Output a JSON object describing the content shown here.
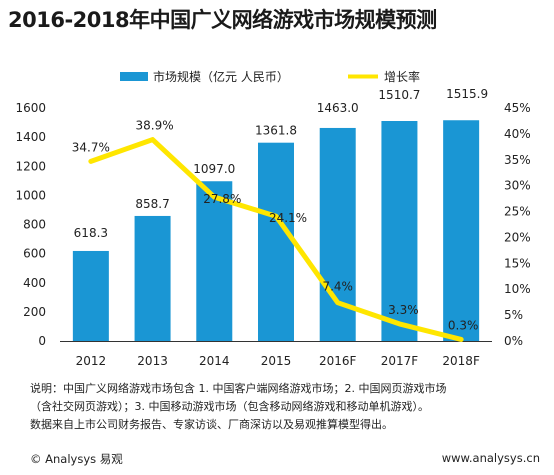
{
  "title": "2016-2018年中国广义网络游戏市场规模预测",
  "colors": {
    "bar": "#1A96D4",
    "line": "#FFE600",
    "axis": "#333333"
  },
  "chart_data": {
    "type": "bar",
    "categories": [
      "2012",
      "2013",
      "2014",
      "2015",
      "2016F",
      "2017F",
      "2018F"
    ],
    "series": [
      {
        "name": "市场规模（亿元 人民币）",
        "type": "bar",
        "axis": "left",
        "values": [
          618.3,
          858.7,
          1097.0,
          1361.8,
          1463.0,
          1510.7,
          1515.9
        ],
        "labels": [
          "618.3",
          "858.7",
          "1097.0",
          "1361.8",
          "1463.0",
          "1510.7",
          "1515.9"
        ]
      },
      {
        "name": "增长率",
        "type": "line",
        "axis": "right",
        "values": [
          34.7,
          38.9,
          27.8,
          24.1,
          7.4,
          3.3,
          0.3
        ],
        "labels": [
          "34.7%",
          "38.9%",
          "27.8%",
          "24.1%",
          "7.4%",
          "3.3%",
          "0.3%"
        ]
      }
    ],
    "y_left": {
      "min": 0,
      "max": 1600,
      "ticks": [
        "0",
        "200",
        "400",
        "600",
        "800",
        "1000",
        "1200",
        "1400",
        "1600"
      ]
    },
    "y_right": {
      "min": 0,
      "max": 45,
      "ticks": [
        "0%",
        "5%",
        "10%",
        "15%",
        "20%",
        "25%",
        "30%",
        "35%",
        "40%",
        "45%"
      ]
    },
    "legend_position": "top",
    "grid": false
  },
  "note": [
    "说明：中国广义网络游戏市场包含 1. 中国客户端网络游戏市场；2. 中国网页游戏市场",
    "（含社交网页游戏）；3. 中国移动游戏市场（包含移动网络游戏和移动单机游戏）。",
    "数据来自上市公司财务报告、专家访谈、厂商深访以及易观推算模型得出。"
  ],
  "footer": {
    "brand": "© Analysys 易观",
    "url": "www.analysys.cn"
  }
}
